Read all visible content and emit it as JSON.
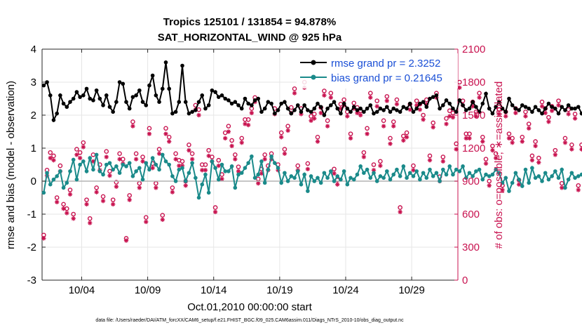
{
  "figure": {
    "title_line1": "Tropics 125101 / 131854 = 94.878%",
    "title_line2": "SAT_HORIZONTAL_WIND @ 925 hPa",
    "footer": "data file: /Users/raeder/DAI/ATM_forcXX/CAM6_setup/f.e21.FHIST_BGC.f09_025.CAM6assim.011/Diags_NTrS_2010-10/obs_diag_output.nc"
  },
  "chart_data": {
    "type": "line",
    "xlabel": "Oct.01,2010 00:00:00 start",
    "ylabel": "rmse and bias (model - observation)",
    "ylabel_right": "# of obs: o=possible; ∗=assimilated",
    "xlim": [
      1.0,
      32.5
    ],
    "ylim": [
      -3,
      4
    ],
    "ylim_right": [
      0,
      2100
    ],
    "x_ticks": [
      4,
      9,
      14,
      19,
      24,
      29
    ],
    "x_tick_labels": [
      "10/04",
      "10/09",
      "10/14",
      "10/19",
      "10/24",
      "10/29"
    ],
    "y_ticks": [
      -3,
      -2,
      -1,
      0,
      1,
      2,
      3,
      4
    ],
    "y_ticks_right": [
      0,
      300,
      600,
      900,
      1200,
      1500,
      1800,
      2100
    ],
    "colors": {
      "rmse": "#000000",
      "bias": "#1a8a8a",
      "obs": "#c8124f",
      "zero": "#b3b3b3",
      "legend_text": "#1a4fd6"
    },
    "legend": [
      {
        "name": "rmse grand pr = 2.3252",
        "series": "rmse"
      },
      {
        "name": "bias grand pr = 0.21645",
        "series": "bias"
      }
    ],
    "x_start": 1.125,
    "x_step": 0.25,
    "series": [
      {
        "name": "rmse",
        "values": [
          2.9,
          3.0,
          2.6,
          1.85,
          2.05,
          2.6,
          2.35,
          2.25,
          2.4,
          2.5,
          2.7,
          2.55,
          2.6,
          2.8,
          2.5,
          2.45,
          2.75,
          2.5,
          2.3,
          2.6,
          2.25,
          2.1,
          2.4,
          3.0,
          2.95,
          2.4,
          2.2,
          2.55,
          2.6,
          2.75,
          2.4,
          2.3,
          2.9,
          3.2,
          2.6,
          2.4,
          2.8,
          3.6,
          2.8,
          2.05,
          2.1,
          2.4,
          3.5,
          2.4,
          2.05,
          2.1,
          2.15,
          2.4,
          2.6,
          2.2,
          2.3,
          2.75,
          2.7,
          2.55,
          2.6,
          2.5,
          2.45,
          2.35,
          2.4,
          2.3,
          2.2,
          2.5,
          2.35,
          2.3,
          2.45,
          2.5,
          2.1,
          2.2,
          2.4,
          2.35,
          2.05,
          2.15,
          2.35,
          2.4,
          2.2,
          2.05,
          2.15,
          2.3,
          2.1,
          2.3,
          2.15,
          2.1,
          2.2,
          2.35,
          2.25,
          2.0,
          2.2,
          2.3,
          2.4,
          2.2,
          2.05,
          2.35,
          2.2,
          2.1,
          2.25,
          2.15,
          2.2,
          2.1,
          2.2,
          2.3,
          2.05,
          2.1,
          2.2,
          2.15,
          2.25,
          2.1,
          2.2,
          2.15,
          2.1,
          2.25,
          2.2,
          2.35,
          2.1,
          2.2,
          2.35,
          2.4,
          2.25,
          2.5,
          2.55,
          2.6,
          2.2,
          2.3,
          2.45,
          2.35,
          2.2,
          2.1,
          2.45,
          2.3,
          2.15,
          2.2,
          2.4,
          2.25,
          2.1,
          2.35,
          2.65,
          2.2,
          2.05,
          2.25,
          2.4,
          2.2,
          2.1,
          2.5,
          2.3,
          2.2,
          2.15,
          2.3,
          2.25,
          2.2,
          2.1,
          2.25,
          2.15,
          2.05,
          2.2,
          2.35,
          2.25,
          2.2,
          2.05,
          2.25,
          2.15,
          2.3,
          2.2,
          2.2,
          2.25,
          2.05,
          2.1,
          2.25,
          2.2,
          1.95,
          2.25,
          2.2,
          2.25,
          2.15,
          2.25,
          2.55,
          2.3,
          2.2,
          2.15,
          2.2
        ]
      },
      {
        "name": "bias",
        "values": [
          -0.35,
          0.25,
          -0.1,
          0.05,
          0.15,
          0.3,
          -0.2,
          -0.05,
          0.3,
          0.65,
          0.05,
          0.5,
          0.6,
          0.3,
          0.7,
          0.35,
          0.8,
          0.3,
          0.2,
          0.5,
          0.55,
          0.35,
          0.45,
          0.25,
          0.5,
          0.45,
          0.55,
          0.15,
          0.3,
          0.4,
          0.05,
          0.55,
          0.35,
          0.7,
          0.5,
          0.35,
          0.8,
          0.6,
          0.5,
          0.15,
          0.0,
          0.35,
          0.4,
          0.0,
          0.25,
          0.55,
          0.1,
          -0.5,
          -0.1,
          0.2,
          -0.35,
          0.6,
          0.4,
          0.05,
          0.5,
          0.3,
          0.3,
          0.45,
          -0.2,
          0.2,
          0.25,
          0.4,
          0.55,
          0.75,
          0.1,
          0.2,
          0.6,
          -0.05,
          0.35,
          0.75,
          0.55,
          0.4,
          -0.05,
          0.25,
          0.0,
          0.15,
          0.1,
          0.3,
          -0.1,
          0.2,
          -0.3,
          0.15,
          0.0,
          0.1,
          -0.05,
          0.25,
          0.1,
          0.3,
          0.0,
          0.15,
          0.05,
          0.3,
          -0.1,
          0.1,
          0.05,
          0.2,
          0.45,
          0.25,
          0.35,
          0.1,
          0.25,
          0.0,
          0.15,
          0.1,
          0.3,
          0.05,
          0.2,
          0.35,
          0.15,
          0.45,
          0.1,
          0.25,
          0.15,
          0.3,
          0.05,
          0.25,
          0.1,
          0.35,
          0.15,
          0.25,
          0.0,
          0.35,
          0.2,
          0.45,
          0.2,
          0.35,
          0.3,
          0.45,
          0.1,
          0.25,
          0.15,
          0.3,
          0.35,
          0.05,
          0.2,
          0.15,
          0.2,
          0.35,
          0.25,
          -0.05,
          0.1,
          -0.3,
          -0.05,
          0.25,
          0.05,
          -0.15,
          0.35,
          -0.05,
          0.4,
          0.1,
          0.15,
          0.0,
          0.25,
          0.05,
          0.15,
          0.3,
          0.1,
          0.35,
          -0.2,
          0.05,
          0.25,
          0.1,
          0.15,
          0.2,
          0.05,
          0.25,
          0.0,
          -0.15,
          0.1,
          -0.05,
          0.2,
          0.35,
          0.05,
          0.15,
          0.0,
          0.25,
          -0.1,
          0.35,
          -0.2,
          0.35
        ]
      },
      {
        "name": "obs_possible",
        "marker": "o",
        "values": [
          410,
          1000,
          1160,
          1130,
          750,
          1040,
          690,
          650,
          820,
          600,
          1190,
          1160,
          1250,
          730,
          560,
          1140,
          840,
          1050,
          760,
          1170,
          990,
          730,
          890,
          1150,
          1100,
          380,
          770,
          1440,
          1150,
          880,
          1120,
          570,
          1380,
          1060,
          880,
          1190,
          590,
          1380,
          1300,
          840,
          1150,
          1090,
          1080,
          900,
          1230,
          1150,
          1590,
          1550,
          1050,
          1050,
          1180,
          1120,
          660,
          1090,
          960,
          1340,
          1400,
          1270,
          1140,
          1030,
          1290,
          1460,
          1460,
          1560,
          1660,
          920,
          1010,
          1140,
          1040,
          1150,
          1560,
          1050,
          1340,
          1190,
          1400,
          1570,
          1740,
          1040,
          1560,
          1800,
          1060,
          1490,
          1510,
          1300,
          1570,
          1720,
          1450,
          1700,
          1010,
          910,
          1600,
          1640,
          1530,
          1330,
          1610,
          1570,
          1540,
          1160,
          1380,
          1700,
          1050,
          1630,
          1080,
          1450,
          1670,
          1290,
          1440,
          1640,
          660,
          1310,
          1340,
          1600,
          1040,
          1630,
          1600,
          1500,
          1640,
          1130,
          1430,
          1700,
          940,
          1120,
          1470,
          1540,
          1520,
          1240,
          1800,
          1630,
          1330,
          1330,
          1620,
          1530,
          1700,
          1300,
          1100,
          900,
          1220,
          1150,
          1550,
          860,
          1530,
          1330,
          1290,
          1560,
          910,
          1300,
          1530,
          1420,
          1130,
          1260,
          1110,
          1620,
          1560,
          1480,
          1580,
          1180,
          1630,
          880,
          1290,
          1550,
          1230,
          1510,
          860,
          1230,
          1690,
          1380,
          980,
          930,
          1210,
          1260,
          1140,
          1300,
          1210,
          1150,
          1450,
          1570,
          1070,
          0
        ]
      },
      {
        "name": "obs_assimilated",
        "marker": "*",
        "values": [
          380,
          950,
          1110,
          1090,
          710,
          990,
          650,
          610,
          780,
          560,
          1140,
          1110,
          1210,
          690,
          520,
          1080,
          800,
          1000,
          720,
          1120,
          950,
          690,
          850,
          1100,
          1060,
          360,
          730,
          1400,
          1100,
          840,
          1080,
          530,
          1330,
          1020,
          840,
          1150,
          550,
          1330,
          1260,
          800,
          1100,
          1040,
          1040,
          860,
          1180,
          1100,
          1550,
          1500,
          1000,
          1000,
          1130,
          1080,
          620,
          1040,
          920,
          1290,
          1350,
          1220,
          1100,
          990,
          1250,
          1420,
          1410,
          1520,
          1620,
          880,
          970,
          1100,
          1000,
          1100,
          1510,
          1000,
          1300,
          1150,
          1360,
          1520,
          1700,
          1000,
          1510,
          1750,
          1010,
          1450,
          1470,
          1260,
          1520,
          1680,
          1400,
          1660,
          970,
          870,
          1560,
          1590,
          1490,
          1290,
          1560,
          1520,
          1500,
          1120,
          1330,
          1660,
          1000,
          1580,
          1040,
          1400,
          1630,
          1240,
          1400,
          1600,
          620,
          1270,
          1300,
          1550,
          1000,
          1590,
          1550,
          1460,
          1600,
          1090,
          1390,
          1660,
          900,
          1080,
          1420,
          1490,
          1480,
          1190,
          1750,
          1590,
          1290,
          1290,
          1580,
          1490,
          1660,
          1260,
          1060,
          860,
          1180,
          1110,
          1510,
          820,
          1490,
          1290,
          1250,
          1520,
          870,
          1260,
          1490,
          1380,
          1090,
          1220,
          1070,
          1580,
          1520,
          1440,
          1540,
          1140,
          1590,
          840,
          1250,
          1510,
          1190,
          1470,
          820,
          1190,
          1650,
          1340,
          940,
          890,
          1170,
          1220,
          1100,
          1260,
          1170,
          1110,
          1410,
          1530,
          1030,
          0
        ]
      }
    ]
  }
}
